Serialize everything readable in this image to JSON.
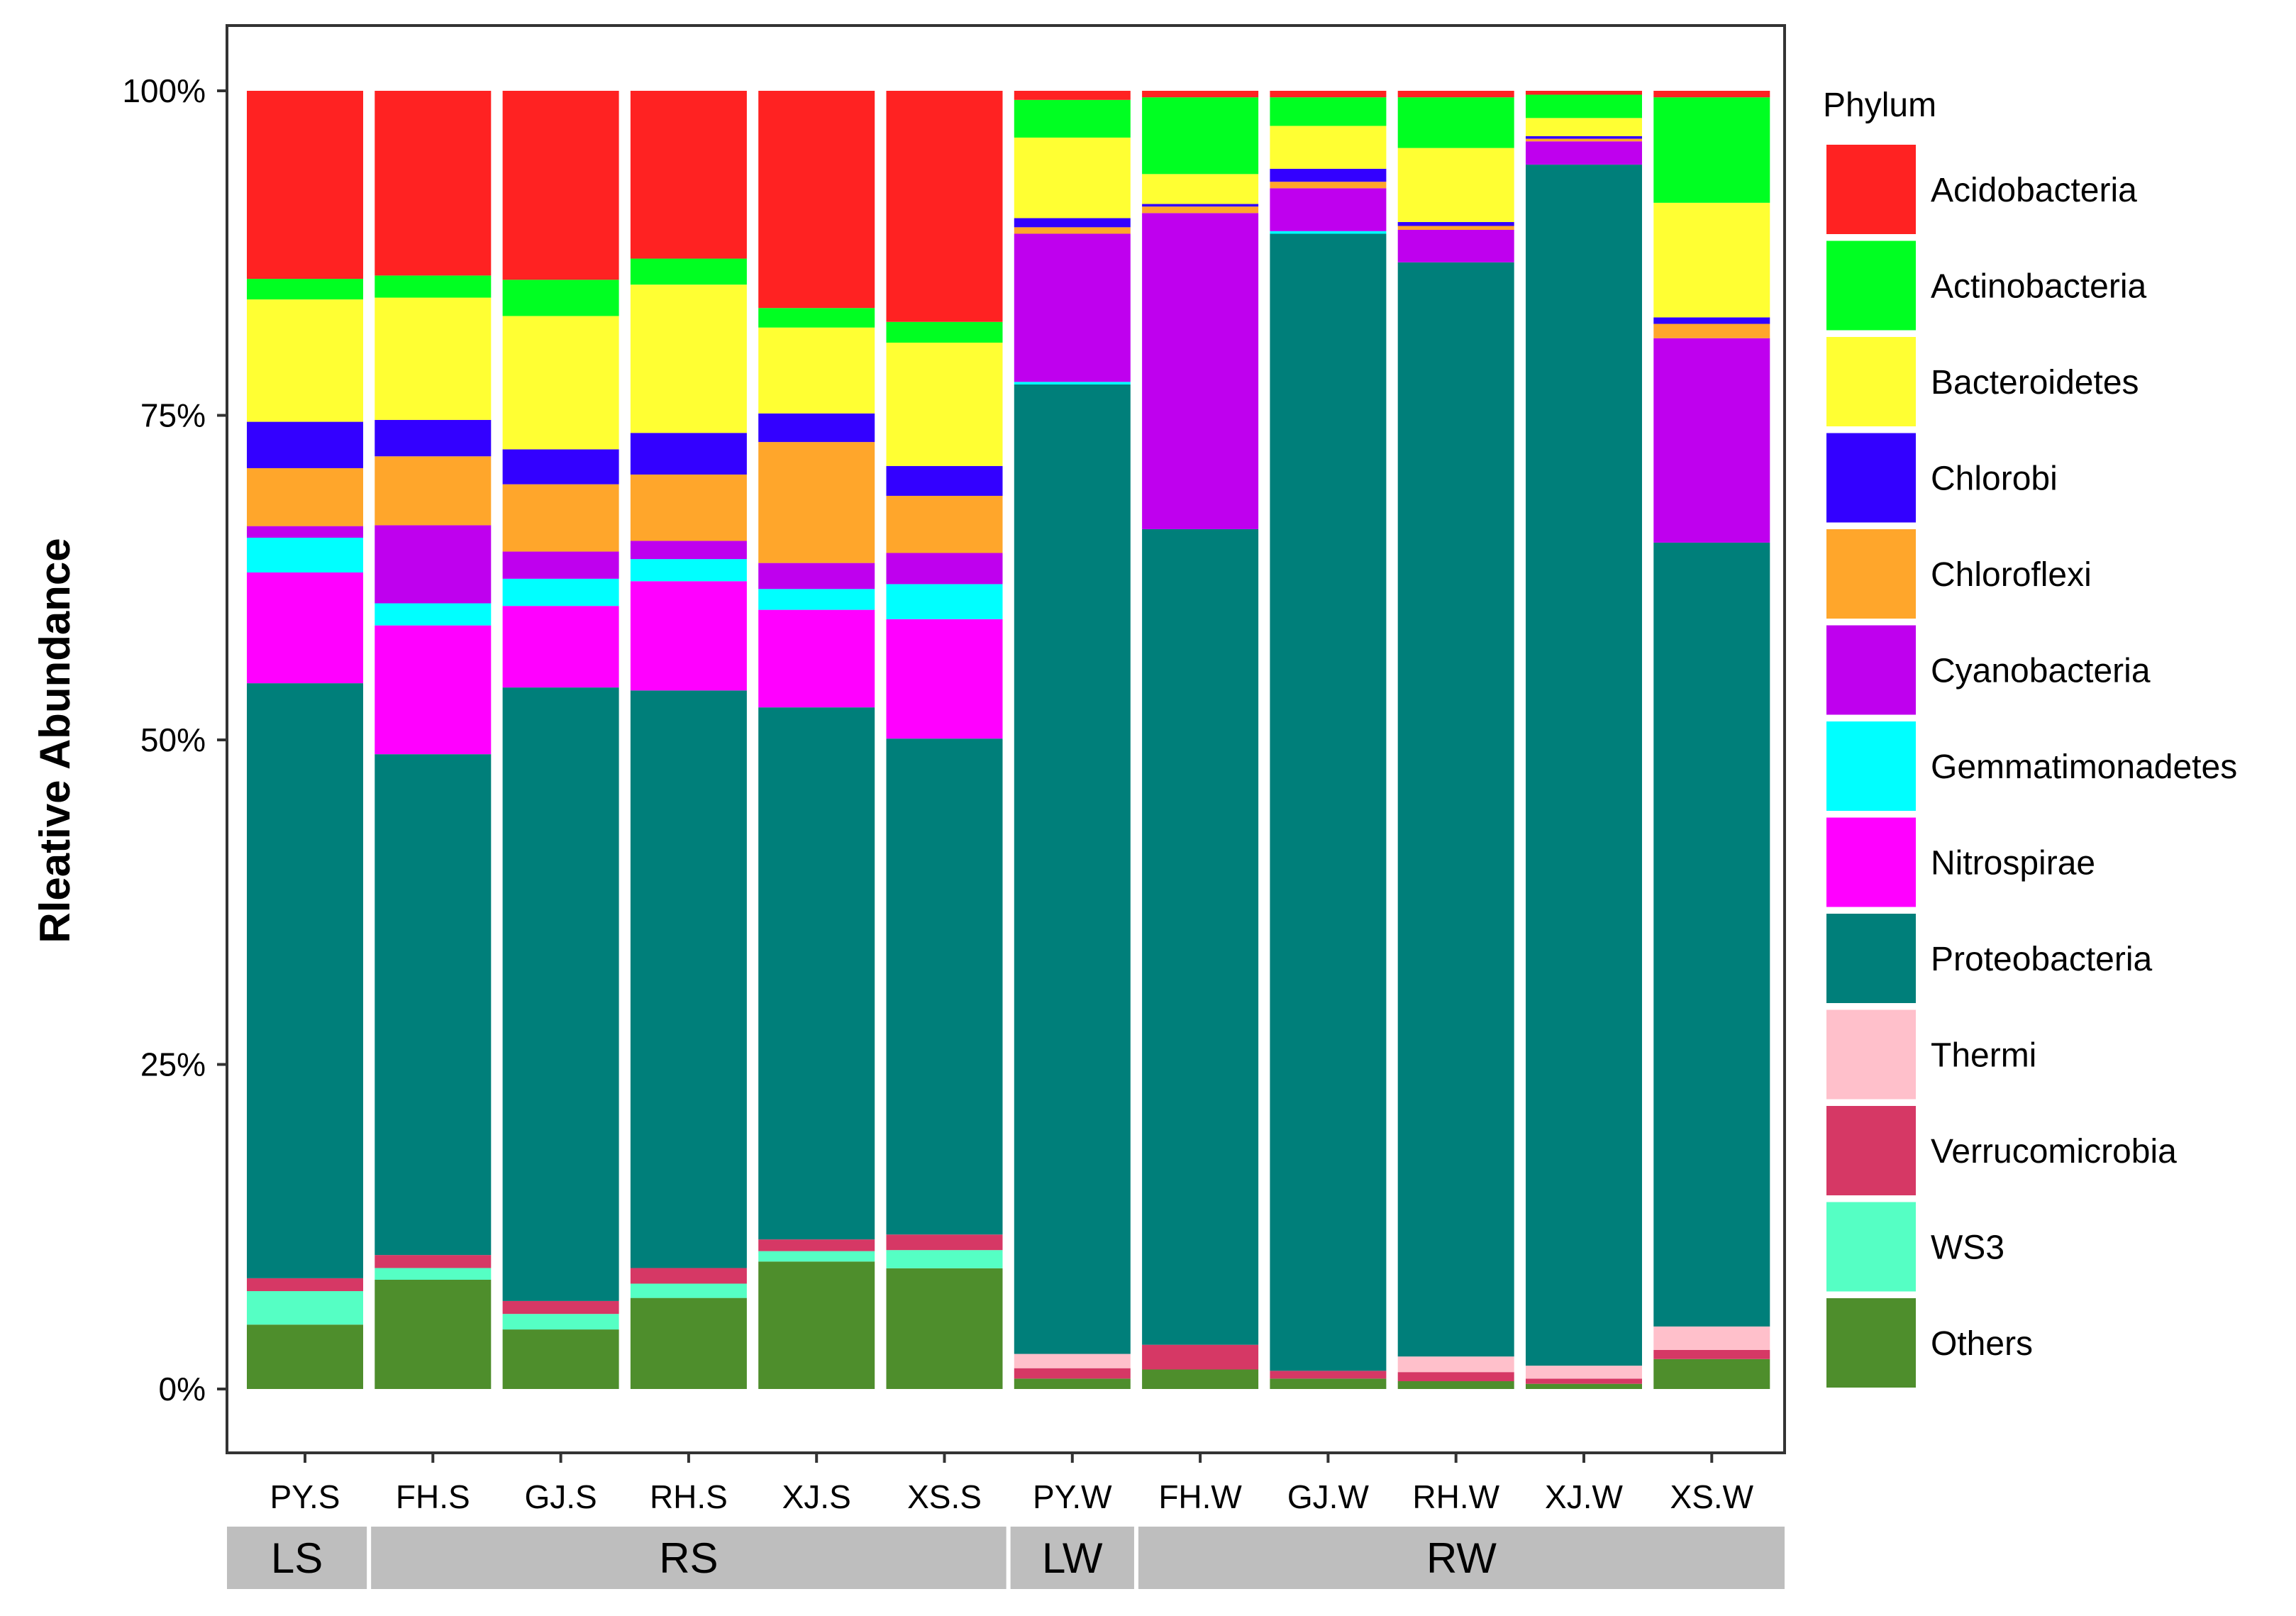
{
  "chart_data": {
    "type": "bar",
    "stacked": true,
    "title": "",
    "xlabel": "",
    "ylabel": "Rleative Abundance",
    "ylim": [
      0,
      100
    ],
    "yticks": [
      0,
      25,
      50,
      75,
      100
    ],
    "ytick_labels": [
      "0%",
      "25%",
      "50%",
      "75%",
      "100%"
    ],
    "grid": false,
    "legend_position": "right",
    "legend_title": "Phylum",
    "categories": [
      "PY.S",
      "FH.S",
      "GJ.S",
      "RH.S",
      "XJ.S",
      "XS.S",
      "PY.W",
      "FH.W",
      "GJ.W",
      "RH.W",
      "XJ.W",
      "XS.W"
    ],
    "groups": [
      {
        "label": "LS",
        "start": 0,
        "end": 0
      },
      {
        "label": "RS",
        "start": 1,
        "end": 5
      },
      {
        "label": "LW",
        "start": 6,
        "end": 6
      },
      {
        "label": "RW",
        "start": 7,
        "end": 11
      }
    ],
    "series": [
      {
        "name": "Acidobacteria",
        "color": "#FF2222",
        "values": [
          14.6,
          14.2,
          14.6,
          12.9,
          16.7,
          17.8,
          0.7,
          0.5,
          0.5,
          0.5,
          0.3,
          0.5
        ]
      },
      {
        "name": "Actinobacteria",
        "color": "#00FF22",
        "values": [
          1.6,
          1.7,
          2.8,
          2.0,
          1.5,
          1.6,
          2.9,
          5.9,
          2.2,
          3.9,
          1.8,
          8.1
        ]
      },
      {
        "name": "Bacteroidetes",
        "color": "#FFFF33",
        "values": [
          9.5,
          9.4,
          10.3,
          11.4,
          6.6,
          9.5,
          6.2,
          2.3,
          3.3,
          5.7,
          1.4,
          8.8
        ]
      },
      {
        "name": "Chlorobi",
        "color": "#3300FF",
        "values": [
          3.6,
          2.8,
          2.7,
          3.2,
          2.2,
          2.3,
          0.7,
          0.2,
          1.0,
          0.3,
          0.2,
          0.5
        ]
      },
      {
        "name": "Chloroflexi",
        "color": "#FFA62B",
        "values": [
          4.5,
          5.3,
          5.2,
          5.1,
          9.3,
          4.4,
          0.5,
          0.5,
          0.5,
          0.3,
          0.2,
          1.1
        ]
      },
      {
        "name": "Cyanobacteria",
        "color": "#BF00EE",
        "values": [
          0.9,
          6.0,
          2.1,
          1.4,
          2.0,
          2.4,
          11.4,
          24.3,
          3.3,
          2.5,
          1.8,
          15.7
        ]
      },
      {
        "name": "Gemmatimonadetes",
        "color": "#00FFFF",
        "values": [
          2.7,
          1.7,
          2.1,
          1.7,
          1.6,
          2.7,
          0.2,
          0.0,
          0.2,
          0.0,
          0.0,
          0.0
        ]
      },
      {
        "name": "Nitrospirae",
        "color": "#FF00FF",
        "values": [
          8.6,
          9.9,
          6.3,
          8.4,
          7.5,
          9.2,
          0.0,
          0.0,
          0.0,
          0.0,
          0.0,
          0.0
        ]
      },
      {
        "name": "Proteobacteria",
        "color": "#007F7A",
        "values": [
          46.2,
          38.5,
          47.4,
          44.4,
          40.9,
          38.2,
          74.6,
          62.7,
          87.5,
          84.2,
          92.7,
          60.2
        ]
      },
      {
        "name": "Thermi",
        "color": "#FFC0CB",
        "values": [
          0.0,
          0.0,
          0.0,
          0.0,
          0.0,
          0.0,
          1.1,
          0.0,
          0.0,
          1.2,
          1.0,
          1.8
        ]
      },
      {
        "name": "Verrucomicrobia",
        "color": "#D63865",
        "values": [
          1.0,
          1.0,
          1.0,
          1.2,
          0.9,
          1.2,
          0.8,
          1.9,
          0.6,
          0.7,
          0.4,
          0.7
        ]
      },
      {
        "name": "WS3",
        "color": "#55FFC4",
        "values": [
          2.6,
          0.9,
          1.2,
          1.1,
          0.8,
          1.4,
          0.0,
          0.0,
          0.0,
          0.0,
          0.0,
          0.0
        ]
      },
      {
        "name": "Others",
        "color": "#4E8E2C",
        "values": [
          5.0,
          8.4,
          4.6,
          7.0,
          9.8,
          9.3,
          0.8,
          1.5,
          0.8,
          0.6,
          0.4,
          2.3
        ]
      }
    ]
  }
}
